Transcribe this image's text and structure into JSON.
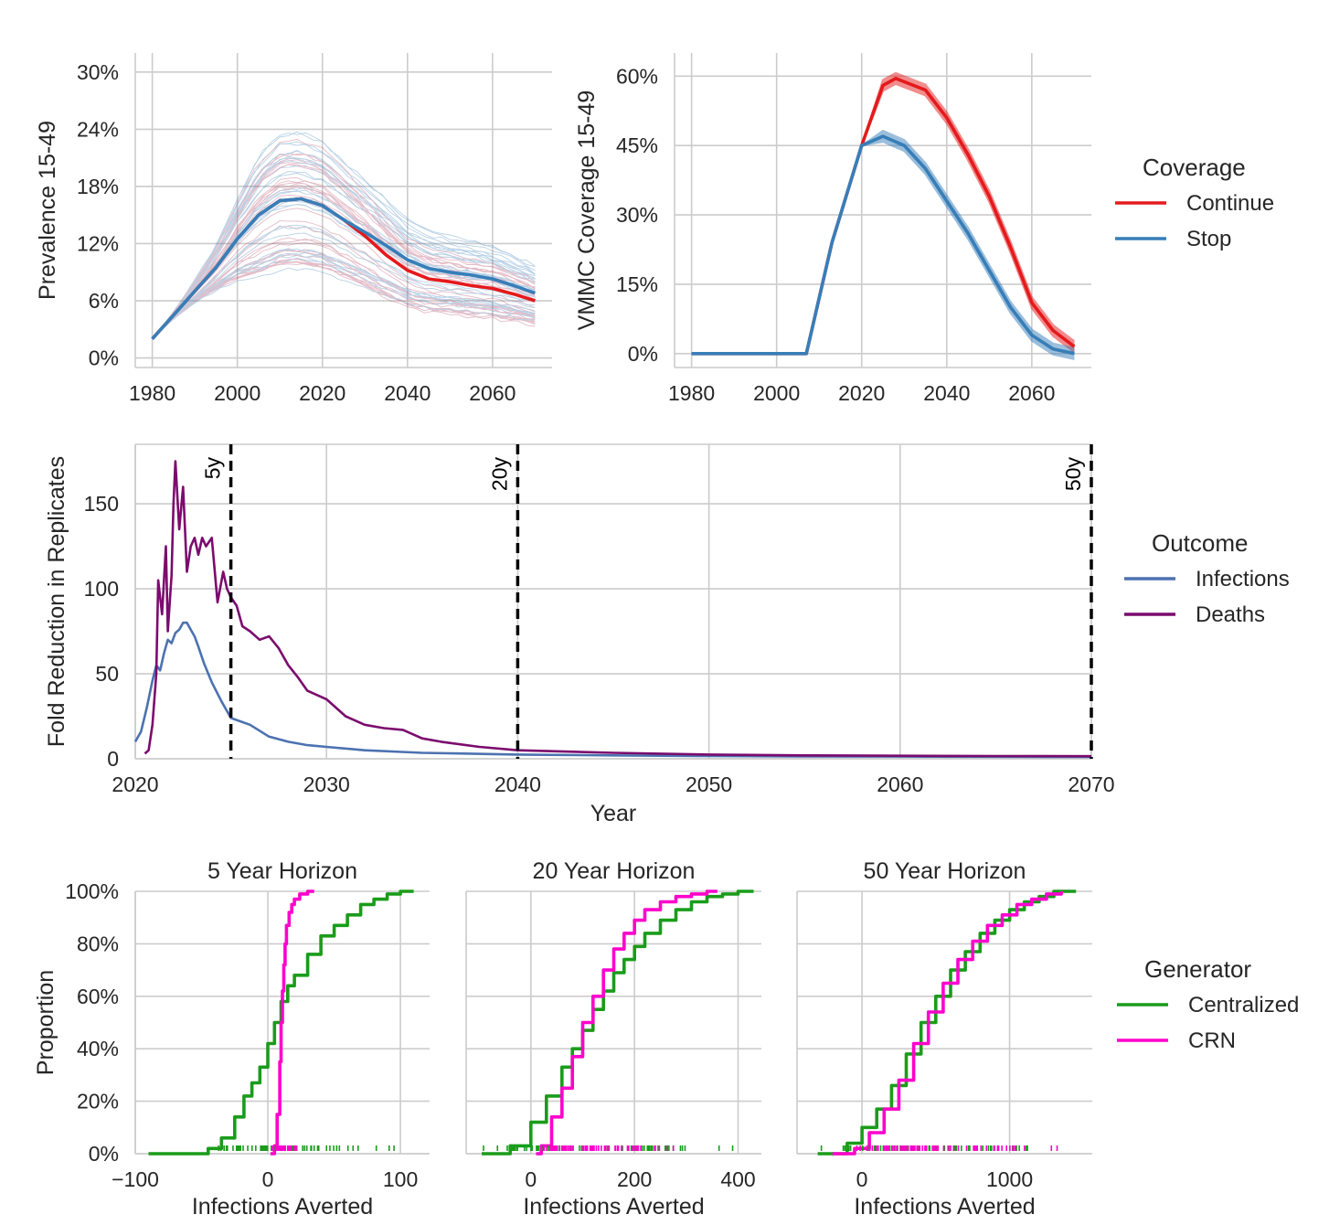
{
  "chart_data": [
    {
      "type": "line",
      "panel": "top-left",
      "ylabel": "Prevalence 15-49",
      "xlim": [
        1976,
        2074
      ],
      "ylim": [
        -0.01,
        0.32
      ],
      "xticks": [
        "1980",
        "2000",
        "2020",
        "2040",
        "2060"
      ],
      "xtick_values": [
        1980,
        2000,
        2020,
        2040,
        2060
      ],
      "yticks": [
        "0%",
        "6%",
        "12%",
        "18%",
        "24%",
        "30%"
      ],
      "ytick_values": [
        0,
        0.06,
        0.12,
        0.18,
        0.24,
        0.3
      ],
      "grid": true,
      "note_spaghetti": "hundreds of thin replicate trajectories per series",
      "series": [
        {
          "name": "Continue",
          "color": "#e41a1c",
          "x": [
            1980,
            1985,
            1990,
            1995,
            2000,
            2005,
            2010,
            2015,
            2020,
            2025,
            2030,
            2035,
            2040,
            2045,
            2050,
            2055,
            2060,
            2065,
            2070
          ],
          "y": [
            0.02,
            0.045,
            0.07,
            0.095,
            0.125,
            0.15,
            0.165,
            0.167,
            0.16,
            0.145,
            0.128,
            0.108,
            0.092,
            0.083,
            0.08,
            0.076,
            0.073,
            0.067,
            0.06
          ]
        },
        {
          "name": "Stop",
          "color": "#377eb8",
          "x": [
            1980,
            1985,
            1990,
            1995,
            2000,
            2005,
            2010,
            2015,
            2020,
            2025,
            2030,
            2035,
            2040,
            2045,
            2050,
            2055,
            2060,
            2065,
            2070
          ],
          "y": [
            0.02,
            0.045,
            0.07,
            0.095,
            0.125,
            0.15,
            0.165,
            0.167,
            0.16,
            0.145,
            0.132,
            0.118,
            0.103,
            0.094,
            0.09,
            0.087,
            0.083,
            0.076,
            0.068
          ]
        }
      ]
    },
    {
      "type": "line",
      "panel": "top-right",
      "ylabel": "VMMC Coverage 15-49",
      "xlim": [
        1976,
        2074
      ],
      "ylim": [
        -0.03,
        0.65
      ],
      "xticks": [
        "1980",
        "2000",
        "2020",
        "2040",
        "2060"
      ],
      "xtick_values": [
        1980,
        2000,
        2020,
        2040,
        2060
      ],
      "yticks": [
        "0%",
        "15%",
        "30%",
        "45%",
        "60%"
      ],
      "ytick_values": [
        0,
        0.15,
        0.3,
        0.45,
        0.6
      ],
      "grid": true,
      "legend_title": "Coverage",
      "legend_placement": "right",
      "series": [
        {
          "name": "Continue",
          "color": "#e41a1c",
          "x": [
            1980,
            2000,
            2007,
            2013,
            2020,
            2025,
            2028,
            2035,
            2040,
            2045,
            2050,
            2055,
            2060,
            2065,
            2070
          ],
          "y": [
            0,
            0,
            0,
            0.24,
            0.45,
            0.58,
            0.595,
            0.57,
            0.51,
            0.43,
            0.34,
            0.23,
            0.11,
            0.05,
            0.015
          ]
        },
        {
          "name": "Stop",
          "color": "#377eb8",
          "x": [
            1980,
            2000,
            2007,
            2013,
            2020,
            2025,
            2030,
            2035,
            2040,
            2045,
            2050,
            2055,
            2060,
            2065,
            2070
          ],
          "y": [
            0,
            0,
            0,
            0.24,
            0.45,
            0.47,
            0.45,
            0.4,
            0.33,
            0.26,
            0.18,
            0.1,
            0.04,
            0.01,
            0
          ]
        }
      ]
    },
    {
      "type": "line",
      "panel": "middle",
      "xlabel": "Year",
      "ylabel": "Fold Reduction in Replicates",
      "xlim": [
        2020,
        2070
      ],
      "ylim": [
        0,
        185
      ],
      "xticks": [
        "2020",
        "2030",
        "2040",
        "2050",
        "2060",
        "2070"
      ],
      "xtick_values": [
        2020,
        2030,
        2040,
        2050,
        2060,
        2070
      ],
      "yticks": [
        "0",
        "50",
        "100",
        "150"
      ],
      "ytick_values": [
        0,
        50,
        100,
        150
      ],
      "grid": true,
      "legend_title": "Outcome",
      "legend_placement": "right",
      "vlines": [
        {
          "x": 2025,
          "label": "5y"
        },
        {
          "x": 2040,
          "label": "20y"
        },
        {
          "x": 2070,
          "label": "50y"
        }
      ],
      "series": [
        {
          "name": "Infections",
          "color": "#4c72b0",
          "x": [
            2020,
            2020.3,
            2020.6,
            2020.9,
            2021.1,
            2021.3,
            2021.5,
            2021.7,
            2021.9,
            2022.1,
            2022.3,
            2022.5,
            2022.7,
            2022.9,
            2023.1,
            2023.3,
            2023.6,
            2024,
            2024.5,
            2025,
            2025.5,
            2026,
            2027,
            2028,
            2029,
            2030,
            2032,
            2035,
            2040,
            2045,
            2050,
            2055,
            2060,
            2065,
            2070
          ],
          "y": [
            10,
            16,
            30,
            46,
            55,
            52,
            62,
            70,
            68,
            74,
            76,
            80,
            80,
            76,
            72,
            66,
            56,
            45,
            34,
            24,
            22,
            20,
            13,
            10,
            8,
            7,
            5,
            3.5,
            2.5,
            2.0,
            1.6,
            1.4,
            1.3,
            1.2,
            1.1
          ]
        },
        {
          "name": "Deaths",
          "color": "#7b0b6e",
          "x": [
            2020.5,
            2020.7,
            2020.9,
            2021.1,
            2021.2,
            2021.4,
            2021.6,
            2021.7,
            2021.9,
            2022.0,
            2022.1,
            2022.3,
            2022.5,
            2022.7,
            2022.9,
            2023.1,
            2023.3,
            2023.5,
            2023.7,
            2024.0,
            2024.3,
            2024.6,
            2024.8,
            2025.0,
            2025.3,
            2025.6,
            2026.0,
            2026.5,
            2027.0,
            2027.5,
            2028.0,
            2028.5,
            2029,
            2030,
            2031,
            2032,
            2033,
            2034,
            2035,
            2036,
            2038,
            2040,
            2045,
            2050,
            2055,
            2060,
            2065,
            2070
          ],
          "y": [
            3,
            5,
            20,
            50,
            105,
            85,
            125,
            75,
            108,
            150,
            175,
            135,
            160,
            110,
            125,
            130,
            120,
            130,
            125,
            130,
            92,
            110,
            100,
            95,
            90,
            78,
            75,
            70,
            72,
            65,
            55,
            48,
            40,
            35,
            25,
            20,
            18,
            17,
            12,
            10,
            7,
            5,
            3.5,
            2.5,
            2,
            1.8,
            1.6,
            1.5
          ]
        }
      ]
    },
    {
      "type": "line",
      "panel": "bottom-1",
      "title": "5 Year Horizon",
      "xlabel": "Infections Averted",
      "ylabel": "Proportion",
      "xlim": [
        -100,
        122
      ],
      "ylim": [
        0,
        1
      ],
      "xticks": [
        "−100",
        "0",
        "100"
      ],
      "xtick_values": [
        -100,
        0,
        100
      ],
      "yticks": [
        "0%",
        "20%",
        "40%",
        "60%",
        "80%",
        "100%"
      ],
      "ytick_values": [
        0,
        0.2,
        0.4,
        0.6,
        0.8,
        1.0
      ],
      "grid": true,
      "legend_title": "Generator",
      "legend_placement": "right",
      "series": [
        {
          "name": "Centralized",
          "color": "#1a9c1a",
          "x": [
            -90,
            -45,
            -35,
            -25,
            -18,
            -12,
            -6,
            0,
            5,
            10,
            15,
            20,
            30,
            40,
            50,
            60,
            70,
            80,
            90,
            100,
            110
          ],
          "y": [
            0,
            0.02,
            0.06,
            0.14,
            0.22,
            0.27,
            0.33,
            0.42,
            0.5,
            0.58,
            0.64,
            0.68,
            0.76,
            0.83,
            0.87,
            0.91,
            0.95,
            0.97,
            0.99,
            1.0,
            1.0
          ]
        },
        {
          "name": "CRN",
          "color": "#ff00cc",
          "x": [
            2,
            5,
            7,
            9,
            10,
            11,
            12,
            13,
            14,
            16,
            18,
            20,
            24,
            30,
            35
          ],
          "y": [
            0,
            0.03,
            0.15,
            0.35,
            0.5,
            0.62,
            0.72,
            0.8,
            0.87,
            0.92,
            0.95,
            0.97,
            0.99,
            1.0,
            1.0
          ]
        }
      ]
    },
    {
      "type": "line",
      "panel": "bottom-2",
      "title": "20 Year Horizon",
      "xlabel": "Infections Averted",
      "xlim": [
        -125,
        445
      ],
      "ylim": [
        0,
        1
      ],
      "xticks": [
        "0",
        "200",
        "400"
      ],
      "xtick_values": [
        0,
        200,
        400
      ],
      "grid": true,
      "series": [
        {
          "name": "Centralized",
          "color": "#1a9c1a",
          "x": [
            -95,
            -40,
            0,
            30,
            60,
            80,
            100,
            120,
            140,
            160,
            180,
            200,
            220,
            250,
            280,
            310,
            340,
            370,
            400,
            430
          ],
          "y": [
            0,
            0.03,
            0.12,
            0.22,
            0.33,
            0.4,
            0.47,
            0.55,
            0.62,
            0.69,
            0.74,
            0.79,
            0.84,
            0.89,
            0.93,
            0.96,
            0.98,
            0.99,
            1.0,
            1.0
          ]
        },
        {
          "name": "CRN",
          "color": "#ff00cc",
          "x": [
            10,
            20,
            40,
            60,
            80,
            100,
            120,
            140,
            160,
            180,
            200,
            220,
            250,
            280,
            310,
            340,
            360
          ],
          "y": [
            0,
            0.03,
            0.14,
            0.25,
            0.37,
            0.5,
            0.6,
            0.7,
            0.78,
            0.84,
            0.89,
            0.93,
            0.96,
            0.98,
            0.99,
            1.0,
            1.0
          ]
        }
      ]
    },
    {
      "type": "line",
      "panel": "bottom-3",
      "title": "50 Year Horizon",
      "xlabel": "Infections Averted",
      "xlim": [
        -440,
        1560
      ],
      "ylim": [
        0,
        1
      ],
      "xticks": [
        "0",
        "1000"
      ],
      "xtick_values": [
        0,
        1000
      ],
      "grid": true,
      "series": [
        {
          "name": "Centralized",
          "color": "#1a9c1a",
          "x": [
            -300,
            -100,
            0,
            100,
            200,
            300,
            400,
            500,
            600,
            700,
            800,
            900,
            1000,
            1100,
            1200,
            1300,
            1450
          ],
          "y": [
            0,
            0.04,
            0.1,
            0.17,
            0.26,
            0.38,
            0.5,
            0.6,
            0.7,
            0.77,
            0.84,
            0.89,
            0.93,
            0.96,
            0.98,
            1.0,
            1.0
          ]
        },
        {
          "name": "CRN",
          "color": "#ff00cc",
          "x": [
            -200,
            -50,
            50,
            150,
            250,
            350,
            450,
            550,
            650,
            750,
            850,
            950,
            1050,
            1150,
            1250,
            1350
          ],
          "y": [
            0,
            0.02,
            0.08,
            0.17,
            0.28,
            0.42,
            0.54,
            0.65,
            0.74,
            0.81,
            0.87,
            0.91,
            0.95,
            0.97,
            0.99,
            1.0
          ]
        }
      ]
    }
  ]
}
